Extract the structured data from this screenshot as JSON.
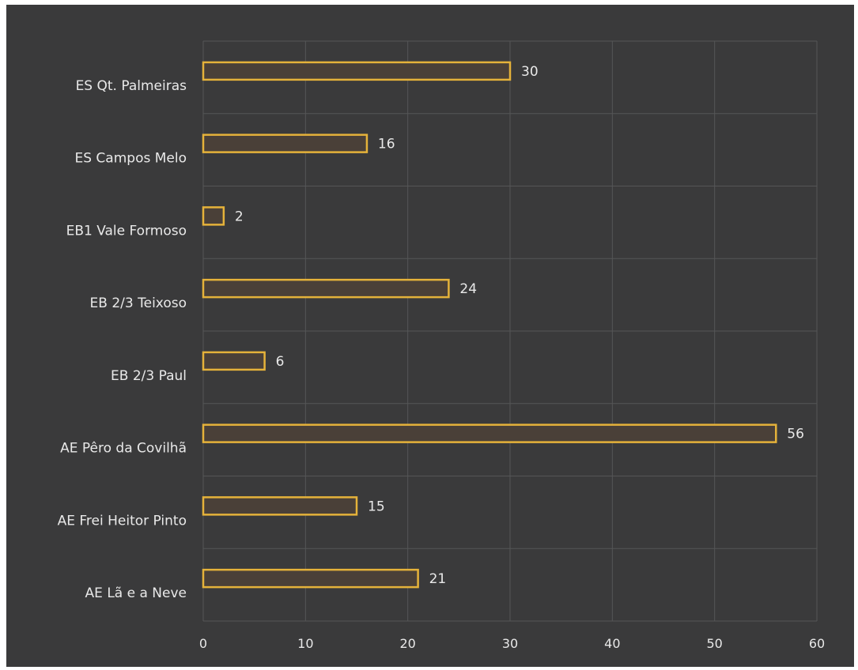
{
  "chart_data": {
    "type": "bar",
    "orientation": "horizontal",
    "categories": [
      "ES Qt. Palmeiras",
      "ES Campos Melo",
      "EB1 Vale Formoso",
      "EB 2/3 Teixoso",
      "EB 2/3 Paul",
      "AE Pêro da Covilhã",
      "AE Frei Heitor Pinto",
      "AE Lã e a Neve"
    ],
    "values": [
      30,
      16,
      2,
      24,
      6,
      56,
      15,
      21
    ],
    "data_labels": [
      "30",
      "16",
      "2",
      "24",
      "6",
      "56",
      "15",
      "21"
    ],
    "xlim": [
      0,
      60
    ],
    "x_ticks": [
      "0",
      "10",
      "20",
      "30",
      "40",
      "50",
      "60"
    ],
    "grid": true,
    "legend": "none",
    "colors": {
      "background": "#3a3a3b",
      "bar_outline": "#e5b23a",
      "bar_fill": "#4a4038",
      "gridline": "#555657",
      "text": "#e9e9e9"
    }
  }
}
